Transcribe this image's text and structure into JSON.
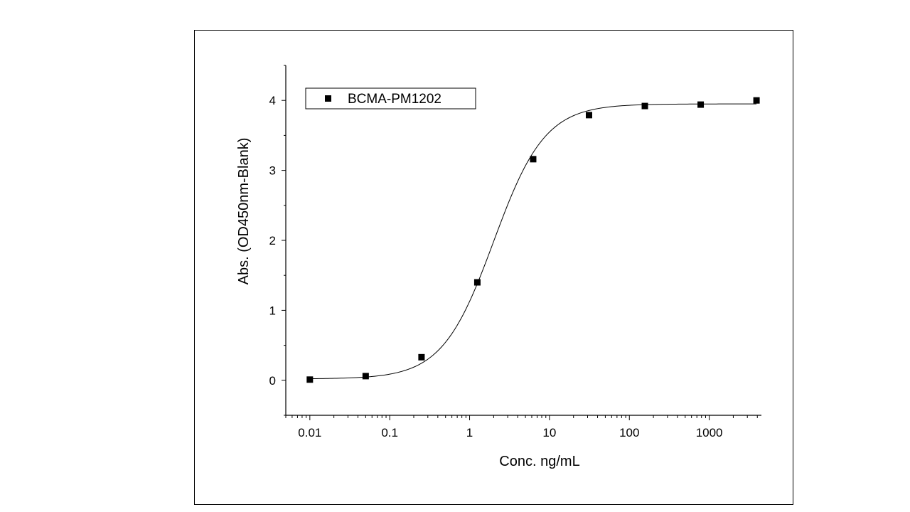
{
  "chart_data": {
    "type": "scatter",
    "title": "",
    "xlabel": "Conc. ng/mL",
    "ylabel": "Abs. (OD450nm-Blank)",
    "x_scale": "log",
    "xlim": [
      0.005,
      4500
    ],
    "ylim": [
      -0.5,
      4.5
    ],
    "x_ticks": [
      0.01,
      0.1,
      1,
      10,
      100,
      1000
    ],
    "x_tick_labels": [
      "0.01",
      "0.1",
      "1",
      "10",
      "100",
      "1000"
    ],
    "y_ticks": [
      0,
      1,
      2,
      3,
      4
    ],
    "y_tick_labels": [
      "0",
      "1",
      "2",
      "3",
      "4"
    ],
    "grid": false,
    "legend_position": "top-left",
    "fit_curve": "4PL",
    "series": [
      {
        "name": "BCMA-PM1202",
        "marker": "square",
        "color": "#000000",
        "x": [
          0.01,
          0.05,
          0.25,
          1.25,
          6.25,
          31.25,
          156.25,
          781.25,
          3906.25
        ],
        "y": [
          0.01,
          0.06,
          0.33,
          1.4,
          3.16,
          3.79,
          3.92,
          3.94,
          4.0
        ]
      }
    ]
  }
}
